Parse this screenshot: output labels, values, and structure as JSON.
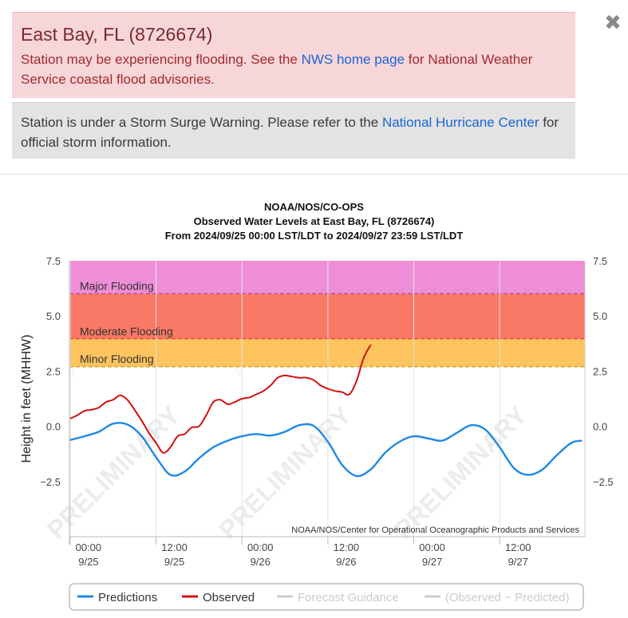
{
  "alerts": {
    "flood": {
      "title": "East Bay, FL (8726674)",
      "text_before": "Station may be experiencing flooding. See the ",
      "link": "NWS home page",
      "text_after": " for National Weather Service coastal flood advisories."
    },
    "surge": {
      "text_before": "Station is under a Storm Surge Warning. Please refer to the ",
      "link": "National Hurricane Center",
      "text_after": " for official storm information."
    },
    "close_symbol": "✖"
  },
  "chart_data": {
    "type": "line",
    "title": "NOAA/NOS/CO-OPS",
    "subtitle": "Observed Water Levels at East Bay, FL (8726674)",
    "subtitle2": "From 2024/09/25 00:00 LST/LDT to 2024/09/27 23:59 LST/LDT",
    "ylabel": "Height in feet (MHHW)",
    "ylim": [
      -5.0,
      7.5
    ],
    "xlim": [
      -0.1,
      71.9
    ],
    "y_ticks": [
      {
        "value": 7.5,
        "label": "7.5"
      },
      {
        "value": 5.0,
        "label": "5.0"
      },
      {
        "value": 2.5,
        "label": "2.5"
      },
      {
        "value": 0.0,
        "label": "0.0"
      },
      {
        "value": -2.5,
        "label": "−2.5"
      }
    ],
    "x_ticks": [
      {
        "hour": 0,
        "time": "00:00",
        "date": "9/25"
      },
      {
        "hour": 12,
        "time": "12:00",
        "date": "9/25"
      },
      {
        "hour": 24,
        "time": "00:00",
        "date": "9/26"
      },
      {
        "hour": 36,
        "time": "12:00",
        "date": "9/26"
      },
      {
        "hour": 48,
        "time": "00:00",
        "date": "9/27"
      },
      {
        "hour": 60,
        "time": "12:00",
        "date": "9/27"
      }
    ],
    "bands": [
      {
        "label": "Major Flooding",
        "from": 6.0,
        "to": 7.5,
        "color": "#ee8ed8",
        "line": "#8a2a8a"
      },
      {
        "label": "Moderate Flooding",
        "from": 3.95,
        "to": 6.0,
        "color": "#fa7866",
        "line": "#c8101c"
      },
      {
        "label": "Minor Flooding",
        "from": 2.7,
        "to": 3.95,
        "color": "#fec45e",
        "line": "#e0a020"
      }
    ],
    "watermark": "PRELIMINARY",
    "credit": "NOAA/NOS/Center for Operational Oceanographic Products and Services",
    "series": [
      {
        "name": "Predictions",
        "color": "#1e88e5",
        "x": [
          0,
          2,
          4,
          6,
          8,
          10,
          12,
          14,
          16,
          18,
          20,
          22,
          24,
          26,
          28,
          30,
          32,
          34,
          36,
          38,
          40,
          42,
          44,
          46,
          48,
          50,
          52,
          54,
          56,
          58,
          60,
          62,
          64,
          66,
          68,
          70,
          71.5
        ],
        "values": [
          -0.62,
          -0.45,
          -0.25,
          0.12,
          0.08,
          -0.45,
          -1.4,
          -2.2,
          -2.05,
          -1.45,
          -0.95,
          -0.65,
          -0.45,
          -0.35,
          -0.42,
          -0.25,
          0.05,
          0.02,
          -0.7,
          -1.75,
          -2.25,
          -1.95,
          -1.2,
          -0.7,
          -0.45,
          -0.55,
          -0.65,
          -0.3,
          0.05,
          -0.15,
          -0.95,
          -1.9,
          -2.2,
          -1.95,
          -1.3,
          -0.75,
          -0.65
        ]
      },
      {
        "name": "Observed",
        "color": "#d01010",
        "x": [
          0,
          1,
          2,
          3,
          4,
          5,
          6,
          7,
          8,
          9,
          10,
          11,
          12,
          13,
          14,
          15,
          16,
          17,
          18,
          19,
          20,
          21,
          22,
          23,
          24,
          25,
          26,
          27,
          28,
          29,
          30,
          31,
          32,
          33,
          34,
          35,
          36,
          37,
          38,
          39,
          40,
          41,
          42
        ],
        "values": [
          0.35,
          0.5,
          0.7,
          0.75,
          0.85,
          1.1,
          1.2,
          1.4,
          1.2,
          0.75,
          0.25,
          -0.3,
          -0.75,
          -1.2,
          -0.95,
          -0.45,
          -0.35,
          -0.05,
          0.0,
          0.5,
          1.1,
          1.2,
          1.0,
          1.1,
          1.25,
          1.3,
          1.45,
          1.6,
          1.85,
          2.2,
          2.3,
          2.25,
          2.2,
          2.2,
          2.1,
          1.85,
          1.7,
          1.6,
          1.55,
          1.45,
          2.05,
          3.1,
          3.7
        ]
      },
      {
        "name": "Forecast Guidance",
        "color": "#cccccc",
        "x": [],
        "values": []
      },
      {
        "name": "(Observed − Predicted)",
        "color": "#cccccc",
        "x": [],
        "values": []
      }
    ],
    "legend_position": "bottom",
    "grid": true
  }
}
